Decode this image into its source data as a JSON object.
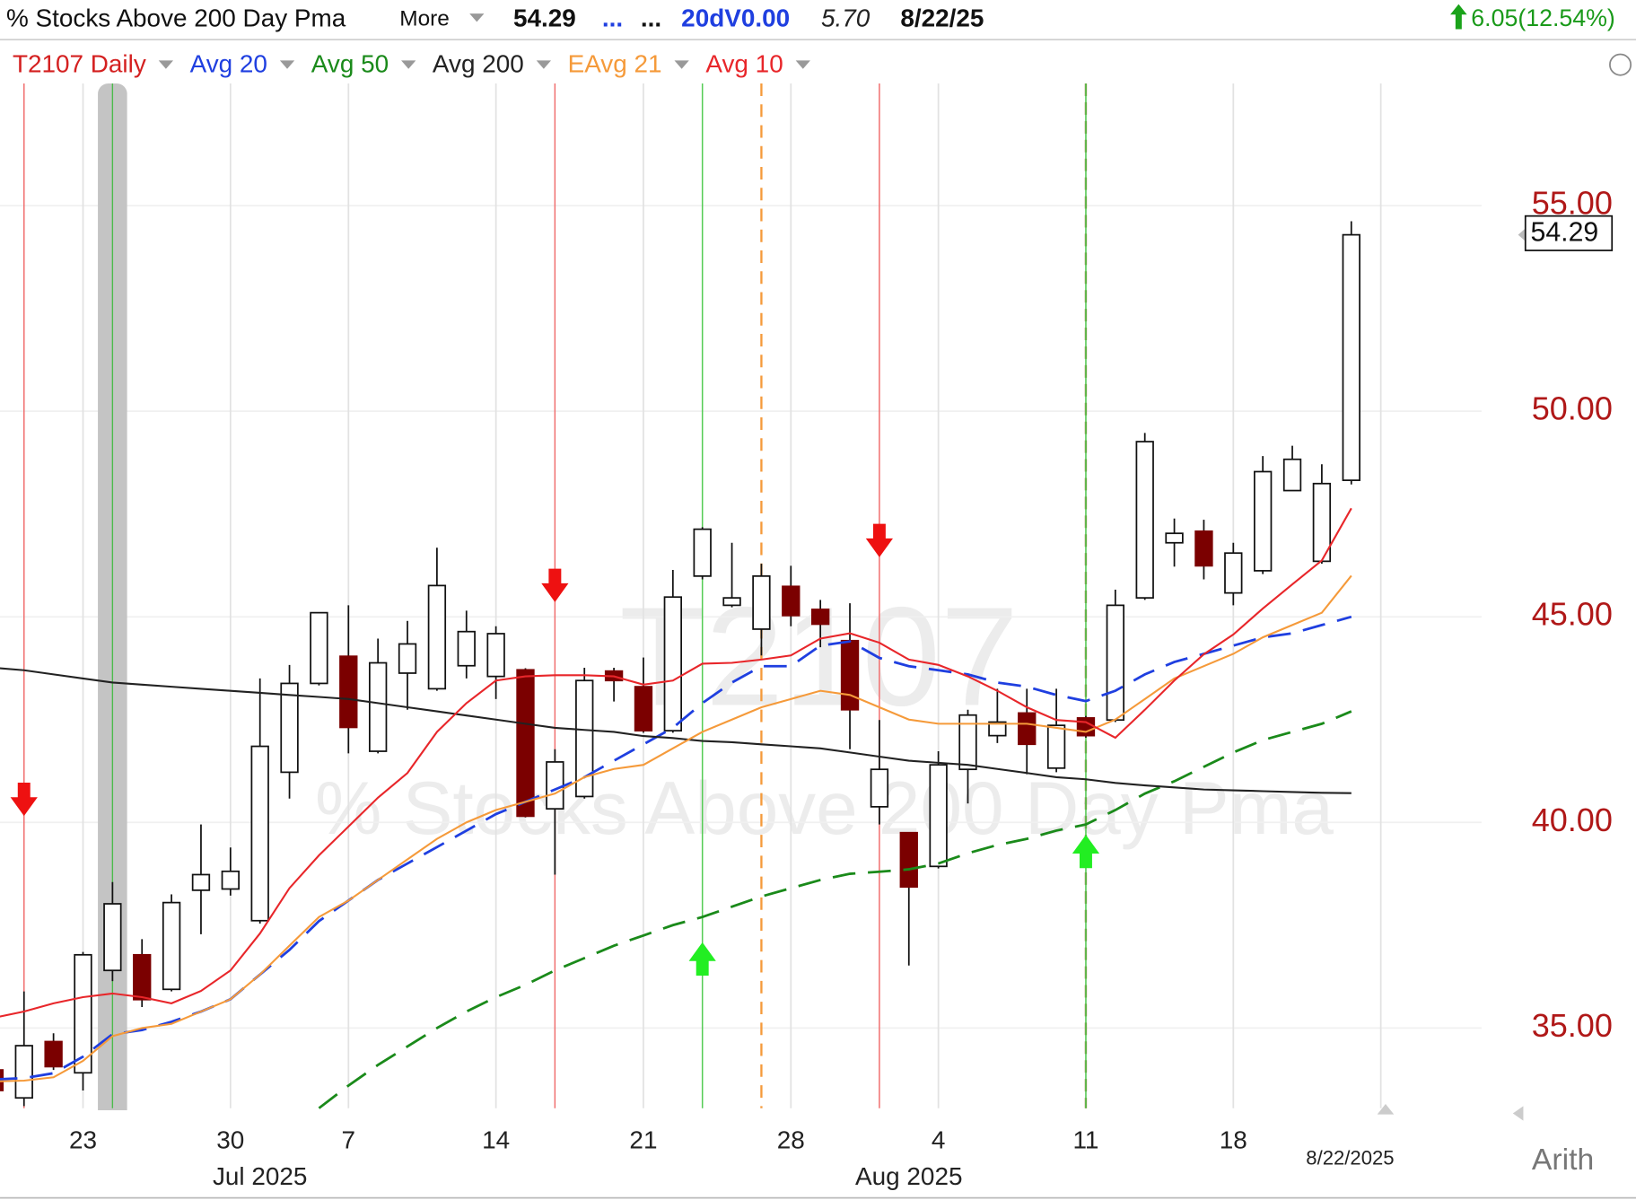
{
  "header": {
    "title": "% Stocks Above 200 Day Pma",
    "more": "More",
    "last": "54.29",
    "dots1": "...",
    "dots2": "...",
    "volume": "20dV0.00",
    "value2": "5.70",
    "date": "8/22/25",
    "change": "6.05(12.54%)"
  },
  "chart_data": {
    "type": "candlestick",
    "name": "T2107 Daily",
    "watermark": "T2107",
    "categories": [
      null,
      null,
      null,
      "23",
      null,
      null,
      null,
      null,
      "30",
      null,
      null,
      null,
      "7",
      null,
      null,
      null,
      null,
      "14",
      null,
      null,
      null,
      null,
      "21",
      null,
      null,
      null,
      null,
      "28",
      null,
      null,
      null,
      null,
      "4",
      null,
      null,
      null,
      null,
      "11",
      null,
      null,
      null,
      null,
      "18",
      null,
      null,
      null,
      null
    ],
    "open": [
      33.98,
      33.3,
      34.67,
      33.91,
      36.4,
      36.78,
      35.94,
      38.35,
      38.38,
      37.61,
      41.22,
      43.38,
      44.04,
      41.73,
      43.63,
      43.25,
      43.81,
      43.55,
      43.71,
      40.33,
      40.63,
      43.68,
      43.3,
      42.23,
      45.99,
      45.28,
      44.7,
      45.74,
      45.18,
      44.42,
      40.38,
      39.75,
      38.93,
      41.29,
      42.11,
      42.66,
      41.32,
      42.54,
      42.49,
      45.46,
      46.8,
      47.08,
      45.58,
      46.12,
      48.07,
      46.35,
      48.32
    ],
    "high": [
      34.0,
      35.89,
      34.87,
      36.85,
      38.55,
      37.16,
      38.25,
      39.95,
      39.39,
      43.5,
      43.83,
      45.1,
      45.28,
      44.47,
      44.9,
      46.68,
      45.15,
      44.77,
      43.75,
      41.78,
      43.76,
      43.76,
      44.01,
      46.14,
      47.18,
      46.8,
      46.29,
      46.24,
      45.41,
      45.33,
      42.49,
      39.75,
      41.73,
      42.74,
      43.25,
      43.25,
      43.25,
      42.59,
      45.66,
      49.47,
      47.39,
      47.36,
      46.8,
      48.91,
      49.16,
      48.71,
      54.62
    ],
    "low": [
      33.45,
      33.1,
      33.98,
      33.48,
      36.14,
      35.51,
      35.89,
      37.28,
      38.22,
      37.54,
      40.58,
      43.33,
      41.68,
      41.68,
      42.74,
      43.2,
      43.5,
      43.0,
      40.12,
      38.73,
      40.58,
      42.94,
      42.18,
      42.18,
      45.91,
      45.23,
      44.06,
      44.77,
      44.26,
      41.78,
      39.95,
      36.52,
      38.88,
      40.46,
      41.93,
      41.17,
      41.22,
      42.06,
      42.44,
      45.41,
      46.22,
      45.91,
      45.28,
      46.04,
      48.07,
      46.29,
      48.22
    ],
    "close": [
      33.48,
      34.57,
      34.06,
      36.78,
      38.02,
      35.69,
      38.05,
      38.73,
      38.81,
      41.85,
      43.38,
      45.1,
      42.31,
      43.88,
      44.34,
      45.76,
      44.64,
      44.59,
      40.15,
      41.47,
      43.45,
      43.45,
      42.23,
      45.48,
      47.13,
      45.46,
      45.99,
      45.03,
      44.82,
      42.74,
      41.29,
      38.43,
      41.4,
      42.61,
      42.44,
      41.9,
      42.36,
      42.11,
      45.28,
      49.26,
      47.03,
      46.24,
      46.55,
      48.53,
      48.83,
      48.24,
      54.29
    ],
    "up_color": "#ffffff",
    "down_color": "#7b0000",
    "name_color": "#d42020",
    "overlays": [
      {
        "name": "Avg 20",
        "color": "#1f3fe0",
        "dash": true,
        "values": [
          33.75,
          33.78,
          33.9,
          34.3,
          34.85,
          34.95,
          35.15,
          35.4,
          35.7,
          36.3,
          36.9,
          37.6,
          38.1,
          38.6,
          39.0,
          39.4,
          39.8,
          40.2,
          40.5,
          40.8,
          41.1,
          41.5,
          41.9,
          42.3,
          42.9,
          43.4,
          43.8,
          43.8,
          44.3,
          44.4,
          44.0,
          43.8,
          43.7,
          43.6,
          43.4,
          43.3,
          43.1,
          42.95,
          43.2,
          43.6,
          43.9,
          44.1,
          44.3,
          44.5,
          44.6,
          44.8,
          45.0
        ]
      },
      {
        "name": "Avg 50",
        "color": "#1a8a1a",
        "dash": true,
        "values": [
          null,
          null,
          null,
          null,
          null,
          null,
          null,
          null,
          null,
          null,
          null,
          33.05,
          33.6,
          34.1,
          34.55,
          35.0,
          35.4,
          35.75,
          36.05,
          36.4,
          36.7,
          37.0,
          37.25,
          37.5,
          37.7,
          37.95,
          38.2,
          38.4,
          38.6,
          38.75,
          38.8,
          38.86,
          39.0,
          39.25,
          39.45,
          39.6,
          39.8,
          39.95,
          40.3,
          40.7,
          41.0,
          41.35,
          41.7,
          42.0,
          42.2,
          42.4,
          42.7
        ]
      },
      {
        "name": "Avg 200",
        "color": "#222222",
        "dash": false,
        "values": [
          43.76,
          43.7,
          43.6,
          43.5,
          43.4,
          43.35,
          43.3,
          43.25,
          43.2,
          43.15,
          43.1,
          43.05,
          43.0,
          42.9,
          42.8,
          42.7,
          42.6,
          42.5,
          42.4,
          42.3,
          42.25,
          42.2,
          42.1,
          42.05,
          41.98,
          41.95,
          41.9,
          41.85,
          41.8,
          41.7,
          41.6,
          41.5,
          41.45,
          41.4,
          41.3,
          41.2,
          41.1,
          41.05,
          40.96,
          40.9,
          40.85,
          40.8,
          40.78,
          40.76,
          40.74,
          40.72,
          40.71
        ]
      },
      {
        "name": "EAvg 21",
        "color": "#f59a3a",
        "dash": false,
        "values": [
          33.7,
          33.72,
          33.8,
          34.2,
          34.8,
          35.0,
          35.1,
          35.4,
          35.7,
          36.3,
          37.0,
          37.7,
          38.1,
          38.6,
          39.1,
          39.6,
          40.0,
          40.3,
          40.5,
          40.7,
          41.1,
          41.3,
          41.4,
          41.8,
          42.2,
          42.5,
          42.8,
          43.0,
          43.2,
          43.1,
          42.8,
          42.5,
          42.4,
          42.4,
          42.4,
          42.4,
          42.3,
          42.2,
          42.5,
          43.0,
          43.5,
          43.8,
          44.1,
          44.5,
          44.8,
          45.1,
          46.0
        ]
      },
      {
        "name": "Avg 10",
        "color": "#e8262a",
        "dash": false,
        "values": [
          35.25,
          35.4,
          35.6,
          35.75,
          35.84,
          35.75,
          35.6,
          35.9,
          36.4,
          37.3,
          38.4,
          39.2,
          39.9,
          40.6,
          41.2,
          42.2,
          42.9,
          43.45,
          43.55,
          43.58,
          43.58,
          43.55,
          43.35,
          43.45,
          43.86,
          43.88,
          43.96,
          44.06,
          44.47,
          44.6,
          44.37,
          43.96,
          43.83,
          43.55,
          43.2,
          42.8,
          42.49,
          42.44,
          42.06,
          42.74,
          43.45,
          44.09,
          44.57,
          45.2,
          45.79,
          46.37,
          47.64
        ]
      }
    ],
    "ylim": [
      33.05,
      57.97
    ],
    "yticks": [
      {
        "value": 35,
        "label": "35.00"
      },
      {
        "value": 40,
        "label": "40.00"
      },
      {
        "value": 45,
        "label": "45.00"
      },
      {
        "value": 50,
        "label": "50.00"
      },
      {
        "value": 55,
        "label": "55.00"
      }
    ],
    "months": [
      "Jul 2025",
      "Aug 2025"
    ],
    "last_date": "8/22/2025",
    "scale": "Arith",
    "grid": true
  }
}
